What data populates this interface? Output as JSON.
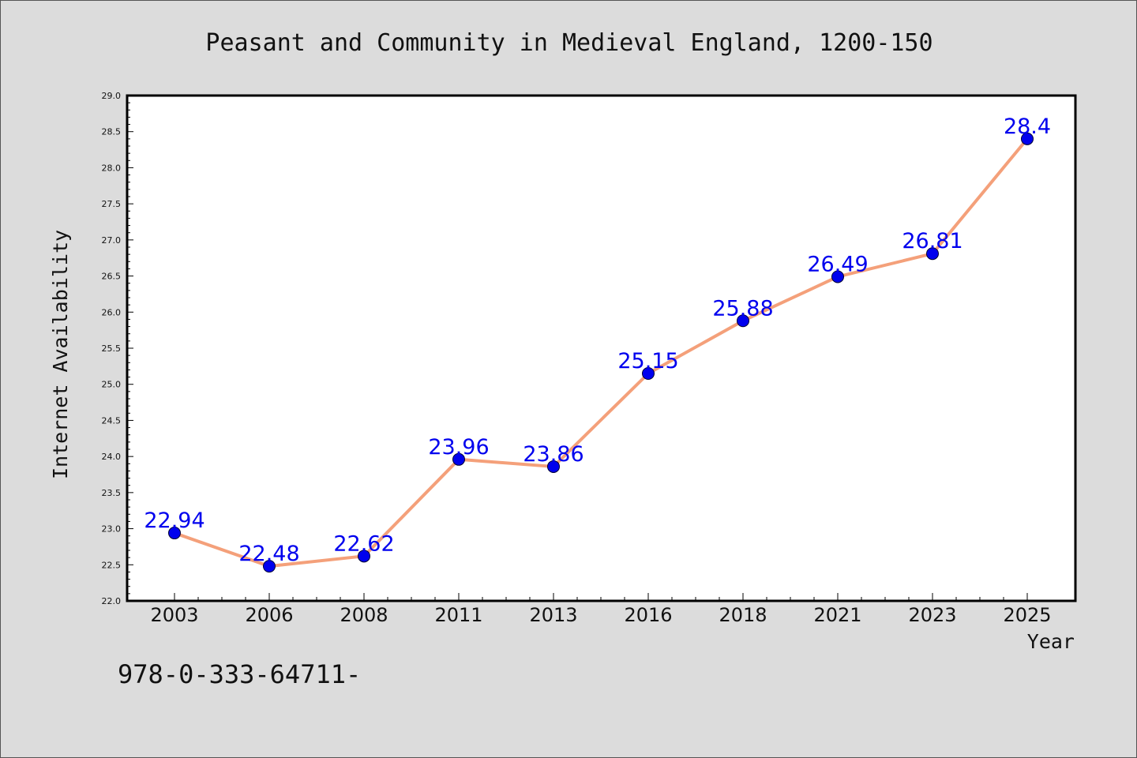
{
  "chart_data": {
    "type": "line",
    "title": "Peasant and Community in Medieval England, 1200-150",
    "xlabel": "Year",
    "ylabel": "Internet Availability",
    "categories": [
      "2003",
      "2006",
      "2008",
      "2011",
      "2013",
      "2016",
      "2018",
      "2021",
      "2023",
      "2025"
    ],
    "series": [
      {
        "values": [
          22.94,
          22.48,
          22.62,
          23.96,
          23.86,
          25.15,
          25.88,
          26.49,
          26.81,
          28.4
        ],
        "data_labels": [
          "22.94",
          "22.48",
          "22.62",
          "23.96",
          "23.86",
          "25.15",
          "25.88",
          "26.49",
          "26.81",
          "28.4"
        ]
      }
    ],
    "ylim": [
      22.0,
      29.0
    ],
    "yticks": [
      "22.0",
      "22.5",
      "23.0",
      "23.5",
      "24.0",
      "24.5",
      "25.0",
      "25.5",
      "26.0",
      "26.5",
      "27.0",
      "27.5",
      "28.0",
      "28.5",
      "29.0"
    ],
    "grid": false,
    "legend": "none",
    "colors": {
      "background": "#dcdcdc",
      "plot_background": "#ffffff",
      "line": "#f4a07a",
      "marker": "#0000ee",
      "data_label": "#0000ee"
    }
  },
  "footer": {
    "isbn_text": "978-0-333-64711-"
  }
}
